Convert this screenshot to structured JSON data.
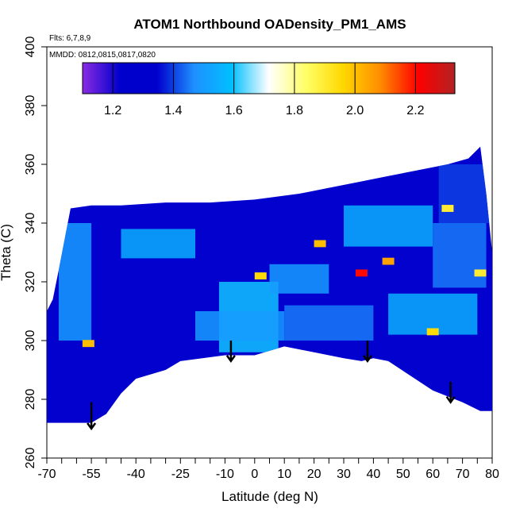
{
  "chart_data": {
    "type": "heatmap",
    "title": "ATOM1 Northbound OADensity_PM1_AMS",
    "subtitle_flights": "Flts: 6,7,8,9",
    "subtitle_dates": "MMDD: 0812,0815,0817,0820",
    "xlabel": "Latitude (deg N)",
    "ylabel": "Theta (C)",
    "xlim": [
      -70,
      80
    ],
    "ylim": [
      260,
      400
    ],
    "x_tick_labels": [
      "-70",
      "-55",
      "-40",
      "-25",
      "-10",
      "0",
      "10",
      "20",
      "30",
      "40",
      "50",
      "60",
      "70",
      "80"
    ],
    "x_tick_values": [
      -70,
      -55,
      -40,
      -25,
      -10,
      0,
      10,
      20,
      30,
      40,
      50,
      60,
      70,
      80
    ],
    "x_minor_step": 5,
    "y_tick_labels": [
      "260",
      "280",
      "300",
      "320",
      "340",
      "360",
      "380",
      "400"
    ],
    "y_tick_values": [
      260,
      280,
      300,
      320,
      340,
      360,
      380,
      400
    ],
    "colorbar": {
      "range": [
        1.1,
        2.33
      ],
      "tick_values": [
        1.2,
        1.4,
        1.6,
        1.8,
        2.0,
        2.2
      ],
      "tick_labels": [
        "1.2",
        "1.4",
        "1.6",
        "1.8",
        "2.0",
        "2.2"
      ],
      "colors": [
        "#8a2be2",
        "#0000cd",
        "#0000cd",
        "#1e90ff",
        "#00bfff",
        "#ffffff",
        "#ffff66",
        "#ffd700",
        "#ff8c00",
        "#ff0000",
        "#b22222"
      ]
    },
    "coverage_top": [
      [
        -70,
        310
      ],
      [
        -68,
        314
      ],
      [
        -66,
        324
      ],
      [
        -62,
        345
      ],
      [
        -55,
        346
      ],
      [
        -45,
        346
      ],
      [
        -30,
        347
      ],
      [
        -15,
        347
      ],
      [
        0,
        348
      ],
      [
        15,
        350
      ],
      [
        25,
        352
      ],
      [
        35,
        354
      ],
      [
        45,
        356
      ],
      [
        55,
        358
      ],
      [
        65,
        360
      ],
      [
        72,
        362
      ],
      [
        76,
        366
      ],
      [
        78,
        350
      ],
      [
        80,
        330
      ],
      [
        80,
        310
      ]
    ],
    "coverage_bottom": [
      [
        -70,
        272
      ],
      [
        -55,
        272
      ],
      [
        -50,
        275
      ],
      [
        -45,
        282
      ],
      [
        -40,
        287
      ],
      [
        -30,
        290
      ],
      [
        -25,
        293
      ],
      [
        -10,
        295
      ],
      [
        0,
        295
      ],
      [
        10,
        298
      ],
      [
        20,
        296
      ],
      [
        30,
        294
      ],
      [
        36,
        293
      ],
      [
        40,
        294
      ],
      [
        45,
        293
      ],
      [
        60,
        283
      ],
      [
        70,
        279
      ],
      [
        76,
        276
      ],
      [
        80,
        276
      ]
    ],
    "background_value": 1.22,
    "patches": [
      {
        "lat": [
          -66,
          -55
        ],
        "theta": [
          300,
          340
        ],
        "value": 1.5
      },
      {
        "lat": [
          -45,
          -20
        ],
        "theta": [
          328,
          338
        ],
        "value": 1.55
      },
      {
        "lat": [
          -12,
          8
        ],
        "theta": [
          296,
          320
        ],
        "value": 1.6
      },
      {
        "lat": [
          -20,
          10
        ],
        "theta": [
          300,
          310
        ],
        "value": 1.5
      },
      {
        "lat": [
          10,
          40
        ],
        "theta": [
          300,
          312
        ],
        "value": 1.45
      },
      {
        "lat": [
          5,
          25
        ],
        "theta": [
          316,
          326
        ],
        "value": 1.5
      },
      {
        "lat": [
          30,
          60
        ],
        "theta": [
          332,
          346
        ],
        "value": 1.55
      },
      {
        "lat": [
          45,
          75
        ],
        "theta": [
          302,
          316
        ],
        "value": 1.55
      },
      {
        "lat": [
          60,
          78
        ],
        "theta": [
          318,
          340
        ],
        "value": 1.45
      },
      {
        "lat": [
          62,
          80
        ],
        "theta": [
          340,
          360
        ],
        "value": 1.4
      }
    ],
    "hotspots": [
      {
        "lat": -56,
        "theta": 299,
        "value": 2.0
      },
      {
        "lat": 2,
        "theta": 322,
        "value": 1.95
      },
      {
        "lat": 22,
        "theta": 333,
        "value": 2.0
      },
      {
        "lat": 36,
        "theta": 323,
        "value": 2.2
      },
      {
        "lat": 45,
        "theta": 327,
        "value": 2.05
      },
      {
        "lat": 60,
        "theta": 303,
        "value": 1.95
      },
      {
        "lat": 65,
        "theta": 345,
        "value": 1.9
      },
      {
        "lat": 76,
        "theta": 323,
        "value": 1.9
      }
    ],
    "arrows": [
      {
        "lat": -55,
        "theta_top": 279,
        "theta_bottom": 270
      },
      {
        "lat": -8,
        "theta_top": 300,
        "theta_bottom": 293
      },
      {
        "lat": 38,
        "theta_top": 300,
        "theta_bottom": 293
      },
      {
        "lat": 66,
        "theta_top": 286,
        "theta_bottom": 279
      }
    ]
  }
}
